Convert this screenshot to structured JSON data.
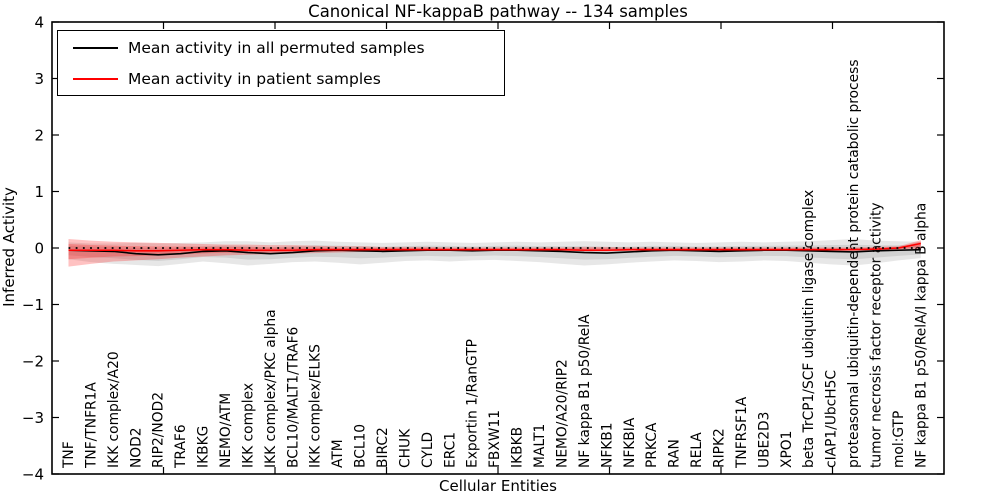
{
  "title": "Canonical NF-kappaB pathway -- 134 samples",
  "axes": {
    "ylabel": "Inferred Activity",
    "xlabel": "Cellular Entities"
  },
  "legend": {
    "position": "upper left",
    "entries": [
      {
        "label": "Mean activity in all permuted samples",
        "color": "#000000"
      },
      {
        "label": "Mean activity in patient samples",
        "color": "#ff0000"
      }
    ]
  },
  "chart_data": {
    "type": "line",
    "title": "Canonical NF-kappaB pathway -- 134 samples",
    "xlabel": "Cellular Entities",
    "ylabel": "Inferred Activity",
    "ylim": [
      -4,
      4
    ],
    "yticks": [
      4,
      3,
      2,
      1,
      0,
      -1,
      -2,
      -3,
      -4
    ],
    "grid": false,
    "legend_position": "upper left",
    "zero_line": {
      "y": 0,
      "style": "dotted",
      "color": "#000000"
    },
    "categories": [
      "TNF",
      "TNF/TNFR1A",
      "IKK complex/A20",
      "NOD2",
      "RIP2/NOD2",
      "TRAF6",
      "IKBKG",
      "NEMO/ATM",
      "IKK complex",
      "IKK complex/PKC alpha",
      "BCL10/MALT1/TRAF6",
      "IKK complex/ELKS",
      "ATM",
      "BCL10",
      "BIRC2",
      "CHUK",
      "CYLD",
      "ERC1",
      "Exportin 1/RanGTP",
      "FBXW11",
      "IKBKB",
      "MALT1",
      "NEMO/A20/RIP2",
      "NF kappa B1 p50/RelA",
      "NFKB1",
      "NFKBIA",
      "PRKCA",
      "RAN",
      "RELA",
      "RIPK2",
      "TNFRSF1A",
      "UBE2D3",
      "XPO1",
      "beta TrCP1/SCF ubiquitin ligase complex",
      "cIAP1/UbcH5C",
      "proteasomal ubiquitin-dependent protein catabolic process",
      "tumor necrosis factor receptor activity",
      "mol:GTP",
      "NF kappa B1 p50/RelA/I kappa B alpha"
    ],
    "series": [
      {
        "name": "Mean activity in all permuted samples",
        "color": "#000000",
        "band_color": "#555555",
        "band_opacity": 0.14,
        "values": [
          -0.04,
          -0.05,
          -0.06,
          -0.1,
          -0.12,
          -0.1,
          -0.06,
          -0.05,
          -0.08,
          -0.1,
          -0.08,
          -0.05,
          -0.04,
          -0.05,
          -0.06,
          -0.05,
          -0.04,
          -0.04,
          -0.05,
          -0.04,
          -0.04,
          -0.05,
          -0.06,
          -0.08,
          -0.09,
          -0.07,
          -0.05,
          -0.04,
          -0.05,
          -0.06,
          -0.05,
          -0.04,
          -0.04,
          -0.05,
          -0.06,
          -0.07,
          -0.05,
          -0.04,
          -0.03
        ],
        "band_top": [
          0.1,
          0.08,
          0.08,
          0.09,
          0.08,
          0.09,
          0.1,
          0.12,
          0.12,
          0.1,
          0.12,
          0.13,
          0.11,
          0.1,
          0.09,
          0.1,
          0.11,
          0.1,
          0.09,
          0.1,
          0.11,
          0.1,
          0.11,
          0.12,
          0.11,
          0.1,
          0.11,
          0.1,
          0.09,
          0.1,
          0.11,
          0.1,
          0.11,
          0.12,
          0.14,
          0.16,
          0.13,
          0.12,
          0.11
        ],
        "band_bottom": [
          -0.2,
          -0.25,
          -0.28,
          -0.3,
          -0.32,
          -0.28,
          -0.24,
          -0.27,
          -0.31,
          -0.28,
          -0.25,
          -0.24,
          -0.26,
          -0.29,
          -0.26,
          -0.23,
          -0.22,
          -0.24,
          -0.22,
          -0.21,
          -0.23,
          -0.25,
          -0.28,
          -0.31,
          -0.29,
          -0.26,
          -0.24,
          -0.22,
          -0.23,
          -0.25,
          -0.24,
          -0.22,
          -0.23,
          -0.26,
          -0.29,
          -0.31,
          -0.27,
          -0.22,
          -0.18
        ]
      },
      {
        "name": "Mean activity in patient samples",
        "color": "#ff0000",
        "band_color": "#ff0000",
        "band_opacity": 0.24,
        "values": [
          -0.04,
          -0.04,
          -0.04,
          -0.05,
          -0.05,
          -0.04,
          -0.03,
          -0.03,
          -0.04,
          -0.04,
          -0.04,
          -0.03,
          -0.03,
          -0.03,
          -0.03,
          -0.03,
          -0.03,
          -0.03,
          -0.03,
          -0.03,
          -0.03,
          -0.03,
          -0.03,
          -0.04,
          -0.04,
          -0.03,
          -0.03,
          -0.03,
          -0.03,
          -0.03,
          -0.03,
          -0.03,
          -0.03,
          -0.03,
          -0.03,
          -0.03,
          -0.02,
          0.0,
          0.08
        ],
        "band_top": [
          0.16,
          0.13,
          0.11,
          0.1,
          0.09,
          0.08,
          0.07,
          0.06,
          0.06,
          0.05,
          0.05,
          0.04,
          0.03,
          0.03,
          0.02,
          0.02,
          0.02,
          0.01,
          0.01,
          0.01,
          0.01,
          0.01,
          0.01,
          0.02,
          0.02,
          0.01,
          0.01,
          0.01,
          0.01,
          0.01,
          0.01,
          0.01,
          0.01,
          0.01,
          0.01,
          0.01,
          0.02,
          0.03,
          0.14
        ],
        "band_bottom": [
          -0.33,
          -0.28,
          -0.24,
          -0.22,
          -0.2,
          -0.17,
          -0.15,
          -0.13,
          -0.12,
          -0.11,
          -0.1,
          -0.09,
          -0.08,
          -0.07,
          -0.06,
          -0.05,
          -0.05,
          -0.04,
          -0.04,
          -0.04,
          -0.04,
          -0.04,
          -0.05,
          -0.06,
          -0.06,
          -0.05,
          -0.04,
          -0.04,
          -0.04,
          -0.04,
          -0.04,
          -0.04,
          -0.04,
          -0.04,
          -0.04,
          -0.04,
          -0.05,
          -0.04,
          -0.02
        ]
      }
    ]
  }
}
